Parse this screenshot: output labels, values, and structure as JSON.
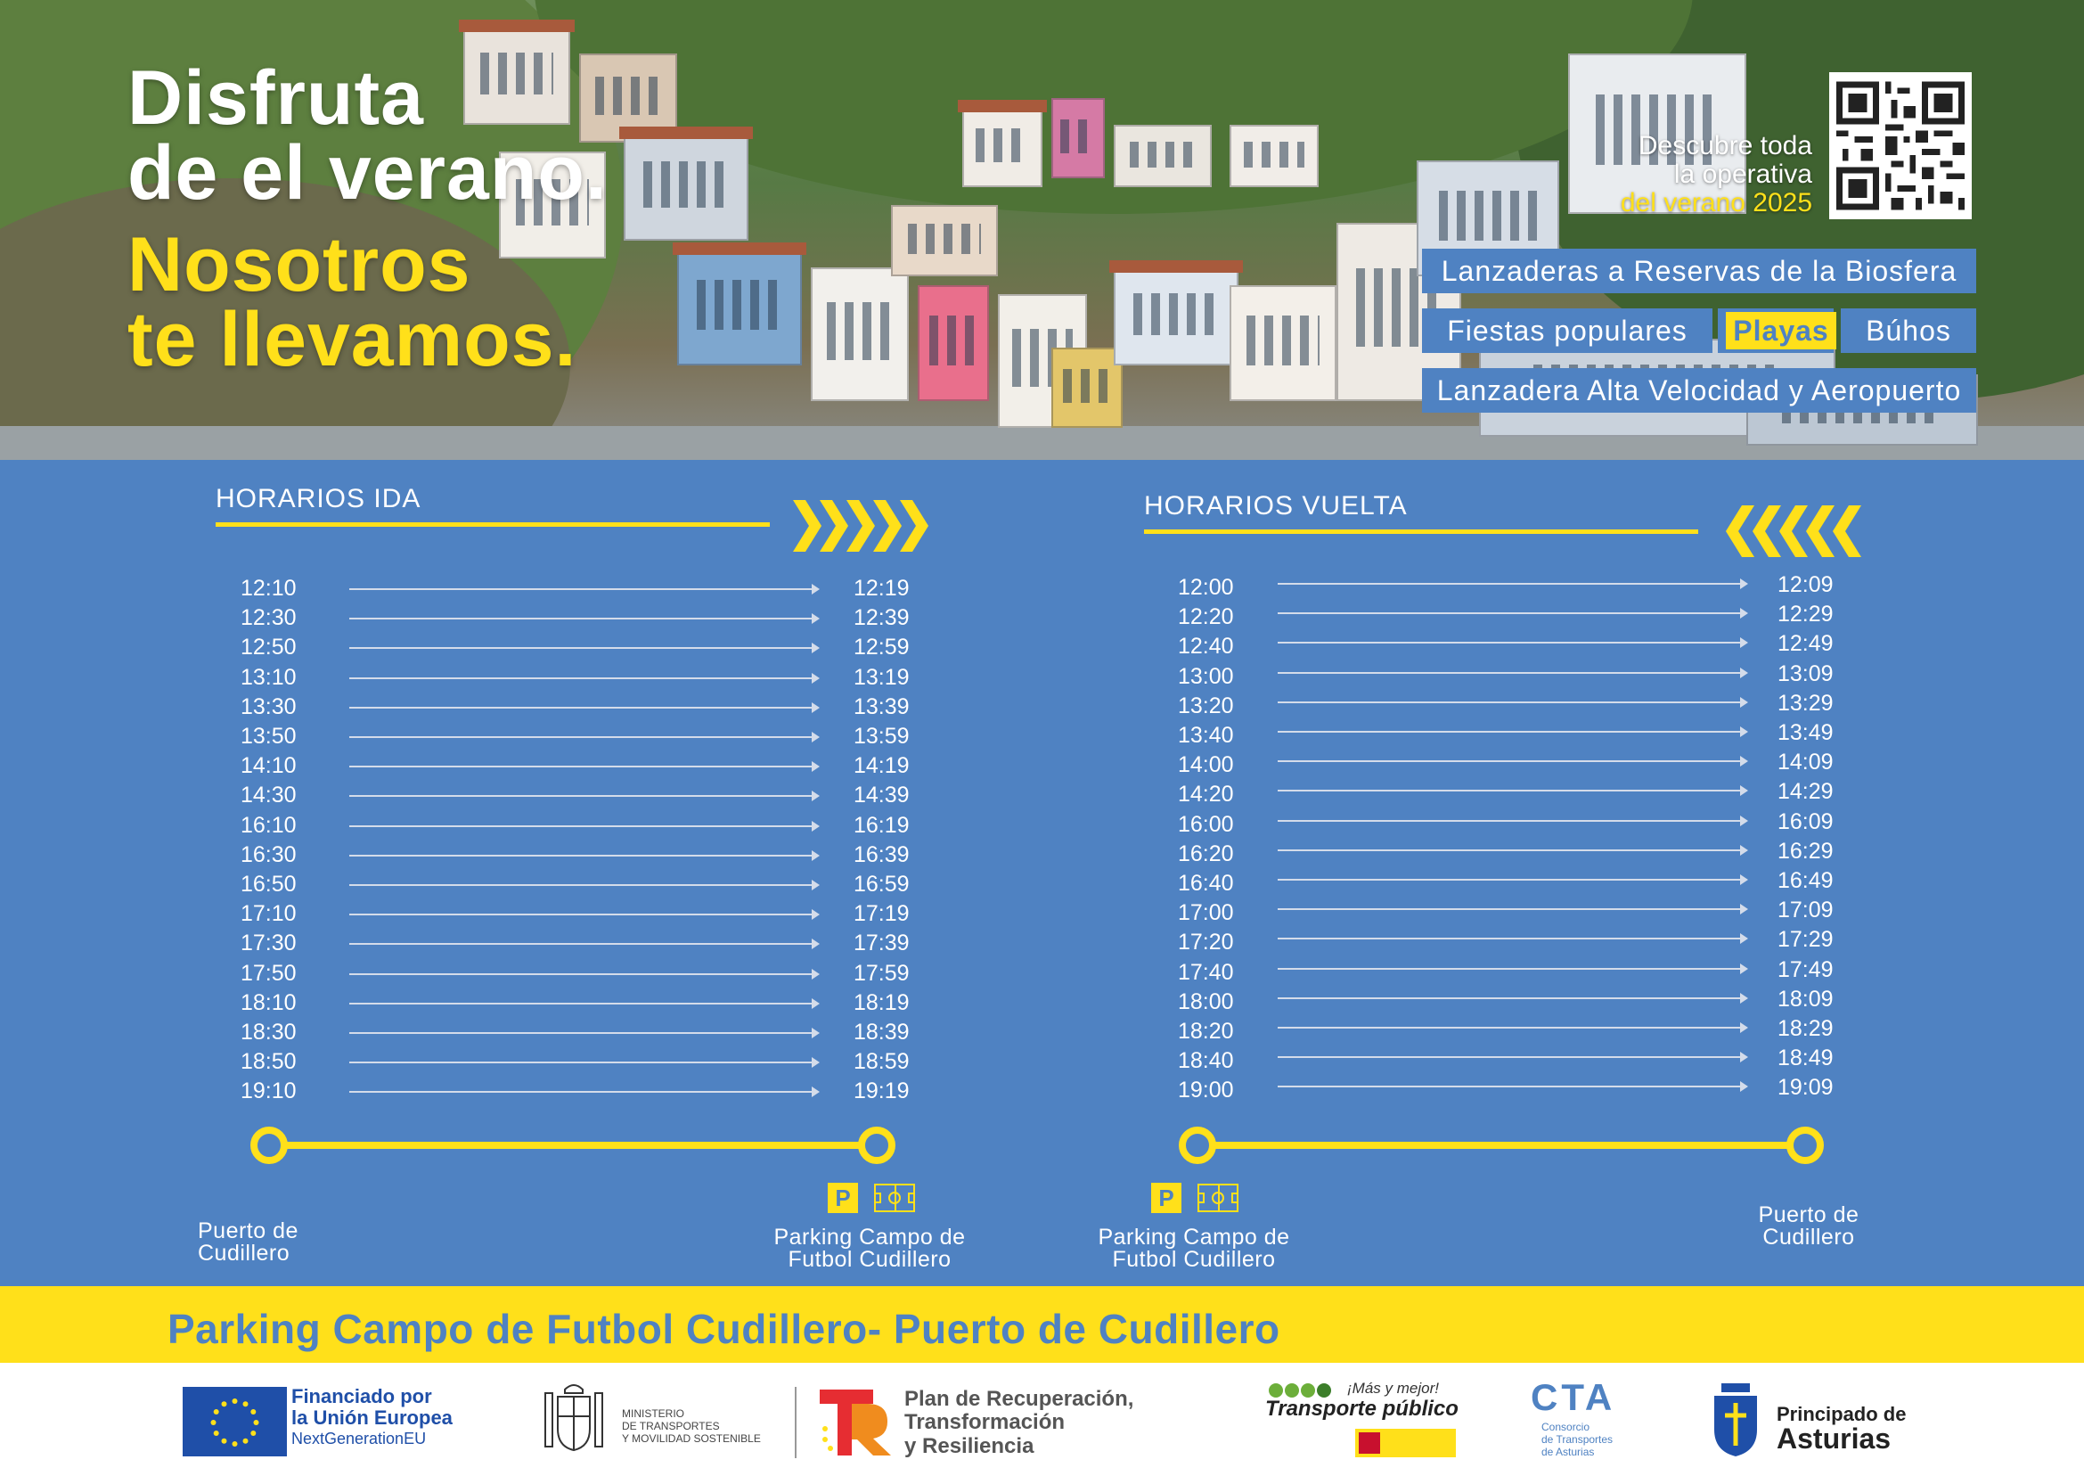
{
  "headline": {
    "line1": "Disfruta",
    "line2": "de el verano.",
    "line3": "Nosotros",
    "line4": "te llevamos."
  },
  "discover": {
    "line1": "Descubre toda",
    "line2": "la operativa",
    "line3": "del verano 2025"
  },
  "menu": {
    "biosfera": "Lanzaderas a Reservas de la Biosfera",
    "fiestas": "Fiestas populares",
    "playas": "Playas",
    "buhos": "Búhos",
    "alta_velocidad": "Lanzadera Alta Velocidad y Aeropuerto"
  },
  "ida": {
    "title": "HORARIOS IDA",
    "departures": [
      "12:10",
      "12:30",
      "12:50",
      "13:10",
      "13:30",
      "13:50",
      "14:10",
      "14:30",
      "16:10",
      "16:30",
      "16:50",
      "17:10",
      "17:30",
      "17:50",
      "18:10",
      "18:30",
      "18:50",
      "19:10"
    ],
    "arrivals": [
      "12:19",
      "12:39",
      "12:59",
      "13:19",
      "13:39",
      "13:59",
      "14:19",
      "14:39",
      "16:19",
      "16:39",
      "16:59",
      "17:19",
      "17:39",
      "17:59",
      "18:19",
      "18:39",
      "18:59",
      "19:19"
    ],
    "origin": "Puerto de Cudillero",
    "destination": "Parking Campo de Futbol Cudillero"
  },
  "vuelta": {
    "title": "HORARIOS VUELTA",
    "departures": [
      "12:00",
      "12:20",
      "12:40",
      "13:00",
      "13:20",
      "13:40",
      "14:00",
      "14:20",
      "16:00",
      "16:20",
      "16:40",
      "17:00",
      "17:20",
      "17:40",
      "18:00",
      "18:20",
      "18:40",
      "19:00"
    ],
    "arrivals": [
      "12:09",
      "12:29",
      "12:49",
      "13:09",
      "13:29",
      "13:49",
      "14:09",
      "14:29",
      "16:09",
      "16:29",
      "16:49",
      "17:09",
      "17:29",
      "17:49",
      "18:09",
      "18:29",
      "18:49",
      "19:09"
    ],
    "origin": "Parking Campo de Futbol Cudillero",
    "destination": "Puerto de Cudillero"
  },
  "route_banner": "Parking Campo de Futbol Cudillero- Puerto de Cudillero",
  "parking_icon_letter": "P",
  "logos": {
    "eu_line1": "Financiado por",
    "eu_line2": "la Unión Europea",
    "eu_line3": "NextGenerationEU",
    "ministerio_line1": "MINISTERIO",
    "ministerio_line2": "DE TRANSPORTES",
    "ministerio_line3": "Y MOVILIDAD SOSTENIBLE",
    "plan_line1": "Plan de Recuperación,",
    "plan_line2": "Transformación",
    "plan_line3": "y Resiliencia",
    "tp_slogan": "¡Más y mejor!",
    "tp_title": "Transporte público",
    "cta_letters": "CTA",
    "cta_line1": "Consorcio",
    "cta_line2": "de Transportes",
    "cta_line3": "de Asturias",
    "asturias_line1": "Principado de",
    "asturias_line2": "Asturias"
  },
  "colors": {
    "blue": "#4f82c2",
    "yellow": "#ffe01a",
    "eu_blue": "#1f4fa8"
  }
}
